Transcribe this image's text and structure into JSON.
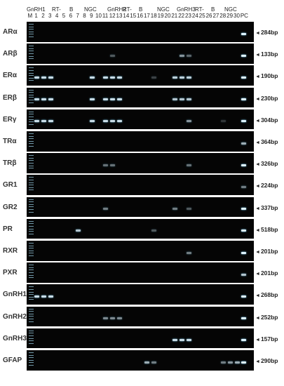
{
  "header": {
    "groups": [
      {
        "label": "GnRH1",
        "pos": 52
      },
      {
        "label": "RT-",
        "pos": 88
      },
      {
        "label": "B",
        "pos": 113
      },
      {
        "label": "NGC",
        "pos": 134
      },
      {
        "label": "GnRH2",
        "pos": 167
      },
      {
        "label": "RT-",
        "pos": 189
      },
      {
        "label": "B",
        "pos": 212
      },
      {
        "label": "NGC",
        "pos": 238
      },
      {
        "label": "GnRH3",
        "pos": 266
      },
      {
        "label": "RT-",
        "pos": 292
      },
      {
        "label": "B",
        "pos": 315
      },
      {
        "label": "NGC",
        "pos": 334
      }
    ],
    "lanes": [
      "M",
      "1",
      "2",
      "3",
      "4",
      "5",
      "6",
      "7",
      "8",
      "9",
      "10",
      "11",
      "12",
      "13",
      "14",
      "15",
      "16",
      "17",
      "18",
      "19",
      "20",
      "21",
      "22",
      "23",
      "24",
      "25",
      "26",
      "27",
      "28",
      "29",
      "30",
      "PC"
    ]
  },
  "rows": [
    {
      "gene": "ARα",
      "size": "284bp",
      "bands": {
        "PC": 1
      }
    },
    {
      "gene": "ARβ",
      "size": "133bp",
      "bands": {
        "12": 0.35,
        "22": 0.6,
        "23": 0.4,
        "PC": 1
      }
    },
    {
      "gene": "ERα",
      "size": "190bp",
      "bands": {
        "1": 0.9,
        "2": 0.9,
        "3": 0.9,
        "9": 0.9,
        "11": 0.9,
        "12": 0.9,
        "13": 0.9,
        "18": 0.25,
        "21": 0.85,
        "22": 0.85,
        "23": 0.85,
        "PC": 1
      }
    },
    {
      "gene": "ERβ",
      "size": "230bp",
      "bands": {
        "1": 0.9,
        "2": 0.9,
        "3": 0.9,
        "9": 0.9,
        "11": 0.9,
        "12": 0.9,
        "13": 0.9,
        "21": 0.8,
        "22": 0.8,
        "23": 0.8,
        "PC": 1
      }
    },
    {
      "gene": "ERγ",
      "size": "304bp",
      "bands": {
        "1": 0.9,
        "2": 0.9,
        "3": 0.9,
        "9": 0.9,
        "11": 0.9,
        "12": 0.9,
        "13": 0.9,
        "23": 0.6,
        "28": 0.2,
        "PC": 1
      }
    },
    {
      "gene": "TRα",
      "size": "364bp",
      "bands": {
        "PC": 0.7
      }
    },
    {
      "gene": "TRβ",
      "size": "326bp",
      "bands": {
        "11": 0.45,
        "12": 0.45,
        "23": 0.45,
        "PC": 1
      }
    },
    {
      "gene": "GR1",
      "size": "224bp",
      "bands": {
        "PC": 0.5
      }
    },
    {
      "gene": "GR2",
      "size": "337bp",
      "bands": {
        "11": 0.5,
        "21": 0.5,
        "23": 0.35,
        "PC": 1
      }
    },
    {
      "gene": "PR",
      "size": "518bp",
      "bands": {
        "7": 0.8,
        "18": 0.35,
        "PC": 1
      }
    },
    {
      "gene": "RXR",
      "size": "201bp",
      "bands": {
        "23": 0.5,
        "PC": 1
      }
    },
    {
      "gene": "PXR",
      "size": "201bp",
      "bands": {
        "PC": 0.8
      }
    },
    {
      "gene": "GnRH1",
      "size": "268bp",
      "bands": {
        "1": 0.9,
        "2": 0.9,
        "3": 0.9,
        "PC": 1
      }
    },
    {
      "gene": "GnRH2",
      "size": "252bp",
      "bands": {
        "11": 0.55,
        "12": 0.55,
        "13": 0.55,
        "PC": 1
      }
    },
    {
      "gene": "GnRH3",
      "size": "157bp",
      "bands": {
        "21": 0.9,
        "22": 0.9,
        "23": 0.9,
        "PC": 1
      }
    },
    {
      "gene": "GFAP",
      "size": "290bp",
      "bands": {
        "17": 0.7,
        "18": 0.5,
        "28": 0.5,
        "29": 0.6,
        "30": 0.7,
        "PC": 1
      }
    }
  ]
}
